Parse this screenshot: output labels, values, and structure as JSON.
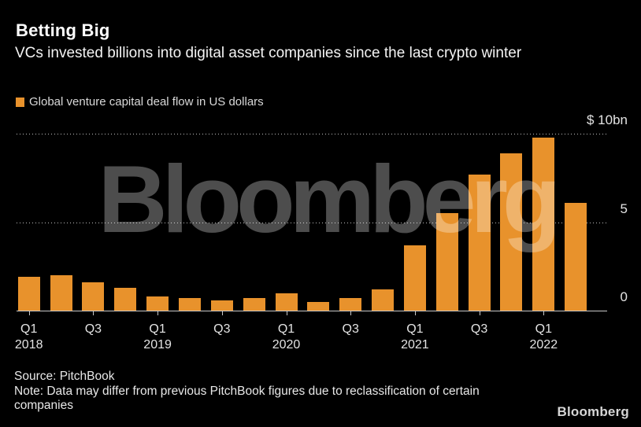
{
  "header": {
    "title": "Betting Big",
    "subtitle": "VCs invested billions into digital asset companies since the last crypto winter",
    "legend_label": "Global venture capital deal flow in US dollars"
  },
  "watermark_text": "Bloomberg",
  "colors": {
    "background": "#000000",
    "bar": "#E8922C",
    "watermark": "rgba(255,255,255,0.30)",
    "axis_line": "#C9C9C9",
    "axis_text": "#E3E3E3",
    "title_text": "#FFFFFF",
    "legend_text": "#D9D9D9"
  },
  "chart_data": {
    "type": "bar",
    "title": "Betting Big",
    "subtitle": "VCs invested billions into digital asset companies since the last crypto winter",
    "legend": [
      "Global venture capital deal flow in US dollars"
    ],
    "legend_position": "top-left",
    "unit": "US$ billions",
    "grid": "horizontal dotted",
    "ylim": [
      0,
      10
    ],
    "categories": [
      "Q1 2018",
      "Q2 2018",
      "Q3 2018",
      "Q4 2018",
      "Q1 2019",
      "Q2 2019",
      "Q3 2019",
      "Q4 2019",
      "Q1 2020",
      "Q2 2020",
      "Q3 2020",
      "Q4 2020",
      "Q1 2021",
      "Q2 2021",
      "Q3 2021",
      "Q4 2021",
      "Q1 2022",
      "Q2 2022"
    ],
    "values": [
      1.9,
      2.0,
      1.6,
      1.3,
      0.8,
      0.7,
      0.6,
      0.7,
      1.0,
      0.5,
      0.7,
      1.2,
      3.7,
      5.5,
      7.7,
      8.9,
      9.8,
      6.1
    ],
    "yticks": [
      {
        "value": 10,
        "label": "$ 10bn"
      },
      {
        "value": 5,
        "label": "5"
      },
      {
        "value": 0,
        "label": "0"
      }
    ],
    "xticks": [
      {
        "index": 0,
        "label": "Q1",
        "year": "2018"
      },
      {
        "index": 2,
        "label": "Q3",
        "year": ""
      },
      {
        "index": 4,
        "label": "Q1",
        "year": "2019"
      },
      {
        "index": 6,
        "label": "Q3",
        "year": ""
      },
      {
        "index": 8,
        "label": "Q1",
        "year": "2020"
      },
      {
        "index": 10,
        "label": "Q3",
        "year": ""
      },
      {
        "index": 12,
        "label": "Q1",
        "year": "2021"
      },
      {
        "index": 14,
        "label": "Q3",
        "year": ""
      },
      {
        "index": 16,
        "label": "Q1",
        "year": "2022"
      }
    ]
  },
  "footer": {
    "source": "Source: PitchBook",
    "note": "Note: Data may differ from previous PitchBook figures due to reclassification of certain companies",
    "logo": "Bloomberg"
  }
}
